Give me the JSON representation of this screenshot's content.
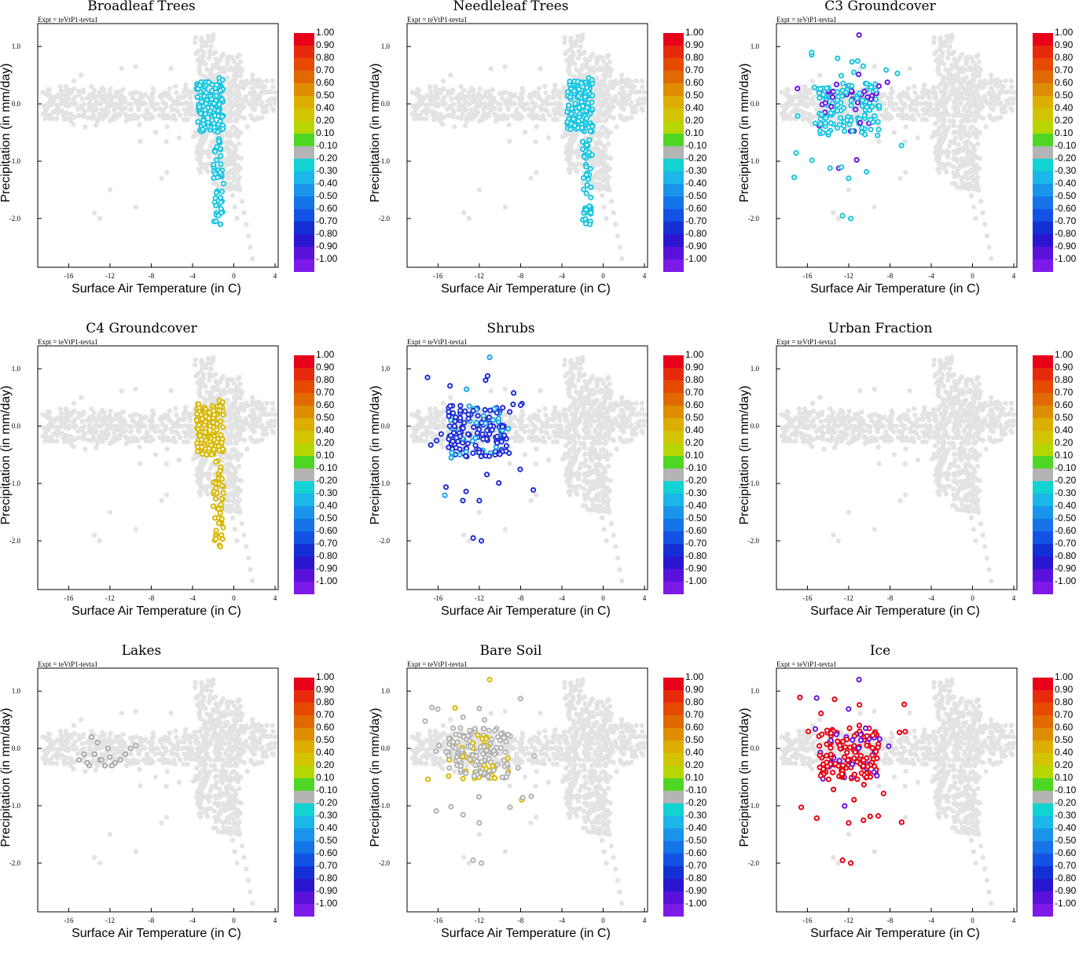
{
  "expt_label": "Expt = teVtP1-tevta1",
  "chart_data": {
    "type": "scatter",
    "xlabel": "Surface Air Temperature (in C)",
    "ylabel": "Precipitation (in mm/day)",
    "xlim": [
      -19,
      4.3
    ],
    "ylim": [
      -2.85,
      1.4
    ],
    "xticks": [
      "-16",
      "-12",
      "-8",
      "-4",
      "0",
      "4"
    ],
    "yticks": [
      "1.0",
      "0.0",
      "-1.0",
      "-2.0"
    ],
    "colorbar": {
      "labels": [
        "1.00",
        "0.90",
        "0.80",
        "0.70",
        "0.60",
        "0.50",
        "0.40",
        "0.20",
        "0.10",
        "-0.10",
        "-0.20",
        "-0.30",
        "-0.40",
        "-0.50",
        "-0.60",
        "-0.70",
        "-0.80",
        "-0.90",
        "-1.00"
      ],
      "colors": [
        "#e8001a",
        "#e82a0c",
        "#e64a00",
        "#e06a00",
        "#de8d00",
        "#dbae00",
        "#d2c400",
        "#b7d600",
        "#4ed624",
        "#b4b4b4",
        "#12d2d2",
        "#1ab7e8",
        "#1a94ea",
        "#1474e8",
        "#1252e4",
        "#1430d4",
        "#2a16d0",
        "#5a12da",
        "#7d1aea"
      ]
    },
    "panels": [
      {
        "title": "Broadleaf Trees",
        "highlight": {
          "color": "#19c5e0",
          "cluster": "transition"
        }
      },
      {
        "title": "Needleleaf Trees",
        "highlight": {
          "color": "#19c5e0",
          "cluster": "transition"
        }
      },
      {
        "title": "C3 Groundcover",
        "highlight": {
          "color": "#19c5e0",
          "cluster": "cold",
          "alt_color": "#6a14e0"
        }
      },
      {
        "title": "C4 Groundcover",
        "highlight": {
          "color": "#d8b800",
          "cluster": "transition"
        }
      },
      {
        "title": "Shrubs",
        "highlight": {
          "color": "#1f2ed6",
          "cluster": "cold",
          "alt_color": "#19a6e6"
        }
      },
      {
        "title": "Urban Fraction",
        "highlight": {
          "color": null,
          "cluster": "none"
        }
      },
      {
        "title": "Lakes",
        "highlight": {
          "color": "#a8a8a8",
          "cluster": "lakes"
        }
      },
      {
        "title": "Bare Soil",
        "highlight": {
          "color": "#b2b2b2",
          "cluster": "cold",
          "alt_color": "#d8b800"
        }
      },
      {
        "title": "Ice",
        "highlight": {
          "color": "#e60012",
          "cluster": "cold",
          "alt_color": "#6a14e0"
        }
      }
    ],
    "background_points": {
      "description_color": "#e3e3e3",
      "points": [
        [
          -18.5,
          0.2
        ],
        [
          -18,
          0.0
        ],
        [
          -17.5,
          0.1
        ],
        [
          -17,
          -0.1
        ],
        [
          -16.8,
          0.3
        ],
        [
          -16.5,
          -0.2
        ],
        [
          -16,
          0.1
        ],
        [
          -15.8,
          -0.3
        ],
        [
          -15.5,
          0.4
        ],
        [
          -15.3,
          0.0
        ],
        [
          -15,
          -0.2
        ],
        [
          -14.8,
          0.5
        ],
        [
          -14.6,
          0.2
        ],
        [
          -14.4,
          -0.4
        ],
        [
          -14.2,
          0.1
        ],
        [
          -14,
          -0.1
        ],
        [
          -13.8,
          0.3
        ],
        [
          -13.6,
          -0.2
        ],
        [
          -13.4,
          0.0
        ],
        [
          -13.2,
          -0.3
        ],
        [
          -13,
          0.2
        ],
        [
          -12.8,
          -0.1
        ],
        [
          -12.6,
          0.1
        ],
        [
          -12.4,
          -0.2
        ],
        [
          -12.2,
          0.0
        ],
        [
          -12,
          -0.3
        ],
        [
          -11.8,
          0.1
        ],
        [
          -11.6,
          -0.1
        ],
        [
          -11.4,
          0.2
        ],
        [
          -11.2,
          -0.2
        ],
        [
          -11,
          0.0
        ],
        [
          -10.8,
          -0.1
        ],
        [
          -10.6,
          0.1
        ],
        [
          -10.4,
          -0.3
        ],
        [
          -10.2,
          0.0
        ],
        [
          -10,
          -0.1
        ],
        [
          -9.8,
          0.1
        ],
        [
          -9.6,
          -0.2
        ],
        [
          -9.4,
          0.0
        ],
        [
          -9.2,
          -0.1
        ],
        [
          -9,
          0.1
        ],
        [
          -8.8,
          -0.2
        ],
        [
          -8.6,
          0.0
        ],
        [
          -8.4,
          -0.1
        ],
        [
          -8.2,
          0.1
        ],
        [
          -8,
          -0.2
        ],
        [
          -7.8,
          0.0
        ],
        [
          -7.6,
          -0.1
        ],
        [
          -7.4,
          0.0
        ],
        [
          -7.2,
          -0.2
        ],
        [
          -7,
          0.1
        ],
        [
          -6.8,
          -0.1
        ],
        [
          -6.6,
          0.0
        ],
        [
          -6.4,
          -0.2
        ],
        [
          -6.2,
          0.1
        ],
        [
          -6,
          -0.1
        ],
        [
          -5.8,
          0.0
        ],
        [
          -5.6,
          -0.1
        ],
        [
          -5.4,
          0.1
        ],
        [
          -5.2,
          -0.2
        ],
        [
          -5,
          0.0
        ],
        [
          -4.8,
          -0.1
        ],
        [
          -4.6,
          0.0
        ],
        [
          -4.4,
          -0.1
        ],
        [
          -4.2,
          0.1
        ],
        [
          -4,
          -0.1
        ],
        [
          -3,
          0.2
        ],
        [
          -2.8,
          0.4
        ],
        [
          -2.6,
          0.6
        ],
        [
          -2.4,
          0.8
        ],
        [
          -2.2,
          1.0
        ],
        [
          -2,
          1.2
        ],
        [
          -1.8,
          0.9
        ],
        [
          -1.6,
          0.7
        ],
        [
          -1.4,
          0.5
        ],
        [
          -1.2,
          0.3
        ],
        [
          -1,
          0.1
        ],
        [
          -0.8,
          -0.1
        ],
        [
          -0.6,
          -0.3
        ],
        [
          -0.4,
          -0.5
        ],
        [
          -0.2,
          -0.7
        ],
        [
          0,
          -0.9
        ],
        [
          0.2,
          -1.1
        ],
        [
          0.4,
          -1.3
        ],
        [
          0.6,
          -1.5
        ],
        [
          0.8,
          -1.7
        ],
        [
          1,
          -1.9
        ],
        [
          1.2,
          -2.1
        ],
        [
          1.4,
          -2.3
        ],
        [
          1.6,
          -2.5
        ],
        [
          1.8,
          -2.7
        ],
        [
          -2.5,
          1.1
        ],
        [
          -2.3,
          0.9
        ],
        [
          -2.1,
          0.6
        ],
        [
          -1.9,
          0.3
        ],
        [
          -1.7,
          0.0
        ],
        [
          -1.5,
          -0.2
        ],
        [
          -1.3,
          -0.4
        ],
        [
          -1.1,
          -0.6
        ],
        [
          -0.9,
          -0.8
        ],
        [
          -0.7,
          -1.0
        ],
        [
          -0.5,
          -1.2
        ],
        [
          -0.3,
          -1.4
        ],
        [
          -0.1,
          -1.6
        ],
        [
          0.1,
          -1.8
        ],
        [
          0.3,
          -2.0
        ],
        [
          0,
          0.2
        ],
        [
          0.5,
          0.1
        ],
        [
          1,
          0.3
        ],
        [
          1.5,
          0.0
        ],
        [
          2,
          0.2
        ],
        [
          2.5,
          0.1
        ],
        [
          3,
          0.3
        ],
        [
          3.5,
          0.0
        ],
        [
          4,
          0.2
        ],
        [
          0.8,
          0.6
        ],
        [
          1.2,
          0.4
        ],
        [
          1.8,
          0.5
        ],
        [
          2.4,
          0.3
        ],
        [
          3.2,
          0.4
        ],
        [
          -1,
          -0.2
        ],
        [
          -0.5,
          0.0
        ],
        [
          0.2,
          -0.3
        ],
        [
          0.7,
          -0.5
        ],
        [
          1.3,
          -0.4
        ],
        [
          -2.4,
          0.1
        ],
        [
          -2.2,
          -0.3
        ],
        [
          -2,
          0.5
        ],
        [
          -1.8,
          -0.5
        ],
        [
          -1.6,
          0.2
        ],
        [
          -1.4,
          -0.8
        ],
        [
          -1.2,
          0.0
        ],
        [
          -1,
          -1.0
        ],
        [
          -0.8,
          0.4
        ],
        [
          -0.6,
          -1.2
        ],
        [
          -0.4,
          0.1
        ],
        [
          -0.2,
          -1.0
        ],
        [
          0,
          -0.4
        ],
        [
          0.2,
          -0.8
        ],
        [
          -2.6,
          -0.1
        ],
        [
          -2.9,
          0.0
        ],
        [
          -3.2,
          -0.2
        ],
        [
          -3.5,
          0.1
        ],
        [
          -13.5,
          -1.9
        ],
        [
          -9.5,
          -1.8
        ],
        [
          -13,
          -2.0
        ],
        [
          -12,
          -1.5
        ],
        [
          -7,
          -1.3
        ],
        [
          -6.5,
          -1.2
        ]
      ]
    }
  }
}
